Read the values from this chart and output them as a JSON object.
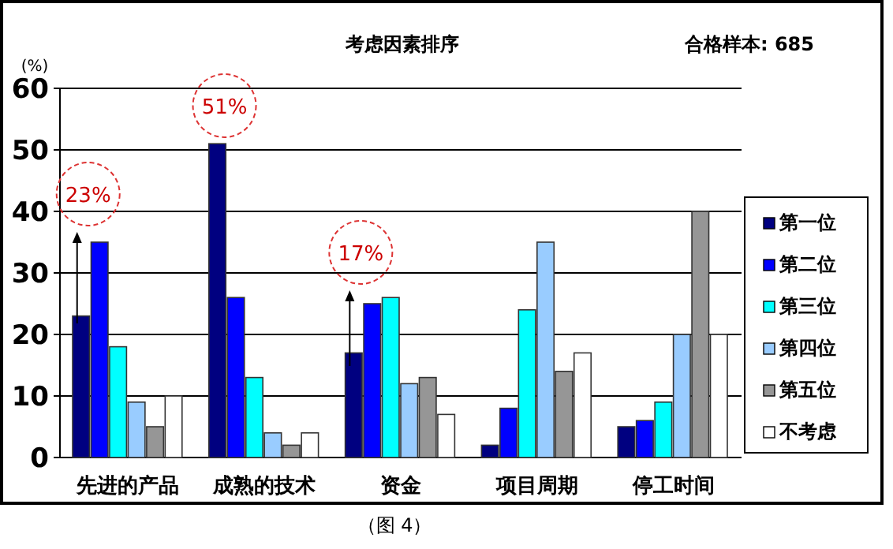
{
  "chart_data": {
    "type": "bar",
    "title": "考虑因素排序",
    "subtitle": "合格样本: 685",
    "ylabel": "(%)",
    "categories": [
      "先进的产品",
      "成熟的技术",
      "资金",
      "项目周期",
      "停工时间"
    ],
    "series": [
      {
        "name": "第一位",
        "color": "#000080",
        "values": [
          23,
          51,
          17,
          2,
          5
        ]
      },
      {
        "name": "第二位",
        "color": "#0000ff",
        "values": [
          35,
          26,
          25,
          8,
          6
        ]
      },
      {
        "name": "第三位",
        "color": "#00ffff",
        "values": [
          18,
          13,
          26,
          24,
          9
        ]
      },
      {
        "name": "第四位",
        "color": "#99ccff",
        "values": [
          9,
          4,
          12,
          35,
          20
        ]
      },
      {
        "name": "第五位",
        "color": "#969696",
        "values": [
          5,
          2,
          13,
          14,
          40
        ]
      },
      {
        "name": "不考虑",
        "color": "#ffffff",
        "values": [
          10,
          4,
          7,
          17,
          20
        ]
      }
    ],
    "ylim": [
      0,
      60
    ],
    "yticks": [
      0,
      10,
      20,
      30,
      40,
      50,
      60
    ],
    "grid": "y",
    "legend": "right",
    "annotations": [
      "23%",
      "51%",
      "17%",
      "（图 4）"
    ]
  }
}
